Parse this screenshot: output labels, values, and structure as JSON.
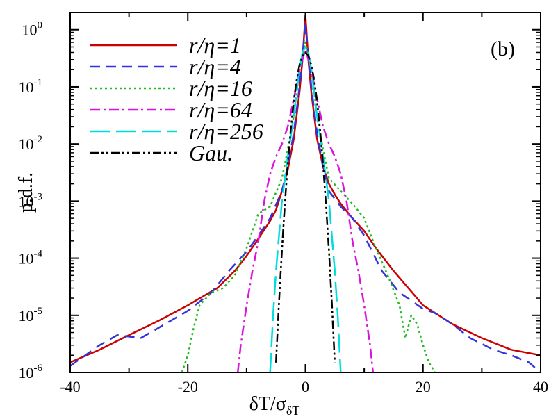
{
  "chart_data": {
    "type": "line",
    "title": "",
    "panel_label": "(b)",
    "xlabel": "δT/σ",
    "xlabel_sub": "δT",
    "ylabel": "p.d.f.",
    "xlim": [
      -40,
      40
    ],
    "ylim": [
      1e-06,
      2
    ],
    "yscale": "log",
    "x_ticks": [
      -40,
      -20,
      0,
      20,
      40
    ],
    "y_ticks": [
      {
        "base": "10",
        "exp": "-6",
        "value": 1e-06
      },
      {
        "base": "10",
        "exp": "-5",
        "value": 1e-05
      },
      {
        "base": "10",
        "exp": "-4",
        "value": 0.0001
      },
      {
        "base": "10",
        "exp": "-3",
        "value": 0.001
      },
      {
        "base": "10",
        "exp": "-2",
        "value": 0.01
      },
      {
        "base": "10",
        "exp": "-1",
        "value": 0.1
      },
      {
        "base": "10",
        "exp": "0",
        "value": 1
      }
    ],
    "legend_position": "top-left",
    "series": [
      {
        "name": "r/η=1",
        "color": "#cc0000",
        "dash": "solid",
        "x": [
          -40,
          -35,
          -30,
          -25,
          -20,
          -15,
          -12,
          -10,
          -8,
          -6,
          -5,
          -4,
          -3,
          -2,
          -1,
          -0.5,
          0,
          0.5,
          1,
          2,
          3,
          4,
          5,
          6,
          8,
          10,
          12,
          15,
          20,
          25,
          30,
          35,
          40
        ],
        "y": [
          1.5e-06,
          2.5e-06,
          4.5e-06,
          8e-06,
          1.5e-05,
          3e-05,
          6e-05,
          0.00011,
          0.00022,
          0.00045,
          0.0007,
          0.0015,
          0.0035,
          0.012,
          0.08,
          0.3,
          1.8,
          0.3,
          0.08,
          0.012,
          0.004,
          0.002,
          0.0013,
          0.0009,
          0.0005,
          0.0003,
          0.00015,
          6e-05,
          1.5e-05,
          7e-06,
          4e-06,
          2.5e-06,
          2e-06
        ]
      },
      {
        "name": "r/η=4",
        "color": "#3333dd",
        "dash": "14,9",
        "x": [
          -40,
          -35,
          -32,
          -28,
          -25,
          -20,
          -16,
          -13,
          -10,
          -8,
          -6,
          -4,
          -3,
          -2,
          -1,
          0,
          1,
          2,
          3,
          4,
          6,
          8,
          10,
          13,
          16,
          20,
          22,
          25,
          28,
          32,
          35,
          38,
          40
        ],
        "y": [
          1.3e-06,
          3e-06,
          4.5e-06,
          4e-06,
          6e-06,
          1.2e-05,
          2.5e-05,
          6e-05,
          0.00013,
          0.00025,
          0.0005,
          0.0015,
          0.004,
          0.015,
          0.1,
          1.2,
          0.1,
          0.015,
          0.004,
          0.0015,
          0.0008,
          0.0005,
          0.00025,
          6e-05,
          2.5e-05,
          1.3e-05,
          1.1e-05,
          7e-06,
          4e-06,
          2.5e-06,
          2e-06,
          1.5e-06,
          1e-06
        ]
      },
      {
        "name": "r/η=16",
        "color": "#22bb22",
        "dash": "3,4",
        "x": [
          -21,
          -20,
          -19,
          -18,
          -16,
          -14,
          -12,
          -10,
          -8,
          -6,
          -4,
          -3,
          -2,
          -1,
          0,
          1,
          2,
          3,
          4,
          6,
          8,
          10,
          12,
          14,
          16,
          17,
          18,
          19,
          20,
          21,
          22
        ],
        "y": [
          1e-06,
          2e-06,
          6e-06,
          1.5e-05,
          2.5e-05,
          3e-05,
          5e-05,
          0.00015,
          0.0006,
          0.0008,
          0.0025,
          0.008,
          0.03,
          0.2,
          0.6,
          0.2,
          0.03,
          0.008,
          0.0025,
          0.0015,
          0.0009,
          0.0005,
          0.00015,
          5e-05,
          1.5e-05,
          4e-06,
          1e-05,
          7e-06,
          3e-06,
          1.5e-06,
          1e-06
        ]
      },
      {
        "name": "r/η=64",
        "color": "#dd11dd",
        "dash": "14,5,3,5",
        "x": [
          -11.5,
          -11,
          -10,
          -9,
          -8,
          -7,
          -6,
          -5,
          -4,
          -3,
          -2,
          -1,
          0,
          1,
          2,
          3,
          4,
          5,
          6,
          7,
          8,
          9,
          10,
          11,
          11.5
        ],
        "y": [
          1e-06,
          3e-06,
          1.5e-05,
          6e-05,
          0.0002,
          0.001,
          0.003,
          0.006,
          0.01,
          0.02,
          0.06,
          0.2,
          0.45,
          0.2,
          0.06,
          0.02,
          0.01,
          0.006,
          0.003,
          0.001,
          0.0002,
          6e-05,
          1.5e-05,
          3e-06,
          1e-06
        ]
      },
      {
        "name": "r/η=256",
        "color": "#00dddd",
        "dash": "28,9",
        "x": [
          -6,
          -5.5,
          -5,
          -4,
          -3,
          -2,
          -1,
          -0.5,
          0,
          0.5,
          1,
          2,
          3,
          4,
          5,
          5.5,
          6
        ],
        "y": [
          1e-06,
          1e-05,
          6e-05,
          0.001,
          0.006,
          0.03,
          0.2,
          0.4,
          0.5,
          0.4,
          0.2,
          0.03,
          0.006,
          0.001,
          6e-05,
          1e-05,
          1e-06
        ]
      },
      {
        "name": "Gau.",
        "color": "#000000",
        "dash": "12,4,3,4,3,4",
        "x": [
          -5,
          -4.5,
          -4,
          -3.5,
          -3,
          -2.5,
          -2,
          -1.5,
          -1,
          -0.5,
          0,
          0.5,
          1,
          1.5,
          2,
          2.5,
          3,
          3.5,
          4,
          4.5,
          5
        ],
        "y": [
          1.49e-06,
          1.6e-05,
          0.000134,
          0.000873,
          0.00443,
          0.0175,
          0.054,
          0.13,
          0.242,
          0.352,
          0.399,
          0.352,
          0.242,
          0.13,
          0.054,
          0.0175,
          0.00443,
          0.000873,
          0.000134,
          1.6e-05,
          1.49e-06
        ]
      }
    ]
  }
}
